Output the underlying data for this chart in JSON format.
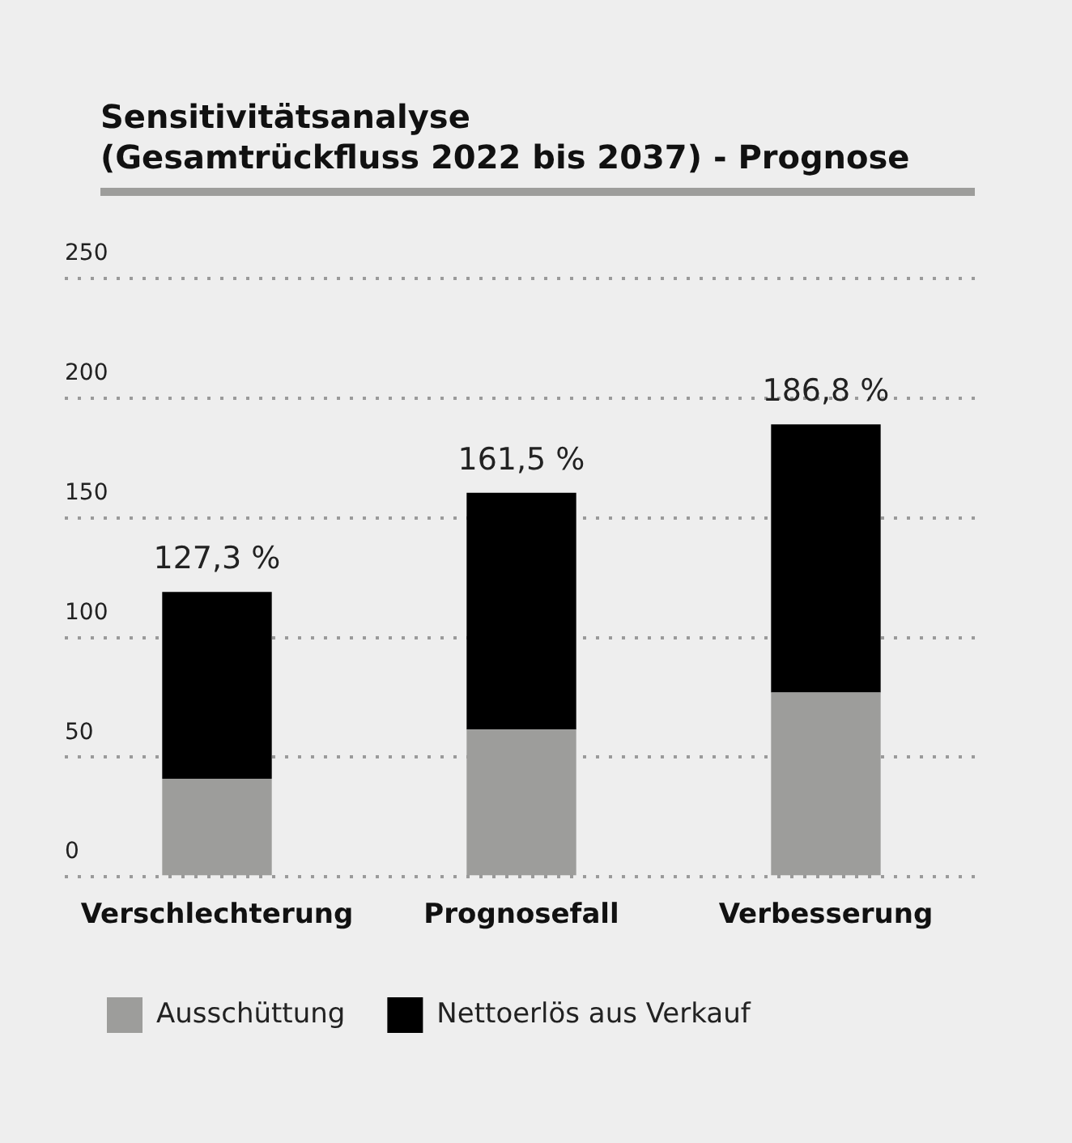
{
  "chart_data": {
    "type": "bar",
    "title": "Sensitivitätsanalyse\n(Gesamtrückfluss 2022 bis 2037) - Prognose",
    "categories": [
      "Verschlechterung",
      "Prognosefall",
      "Verbesserung"
    ],
    "series": [
      {
        "name": "Ausschüttung",
        "color": "#9d9d9b",
        "values": [
          41,
          61.5,
          77
        ]
      },
      {
        "name": "Nettoerlös aus Verkauf",
        "color": "#000000",
        "values": [
          78,
          99,
          112
        ]
      }
    ],
    "stacked": true,
    "annotations": [
      {
        "text": "127,3 %",
        "x": "Verschlechterung",
        "y": 119
      },
      {
        "text": "161,5 %",
        "x": "Prognosefall",
        "y": 160.5
      },
      {
        "text": "186,8 %",
        "x": "Verbesserung",
        "y": 189
      }
    ],
    "ylim": [
      0,
      250
    ],
    "yticks": [
      0,
      50,
      100,
      150,
      200,
      250
    ],
    "grid": "y",
    "legend": "bottom left"
  }
}
